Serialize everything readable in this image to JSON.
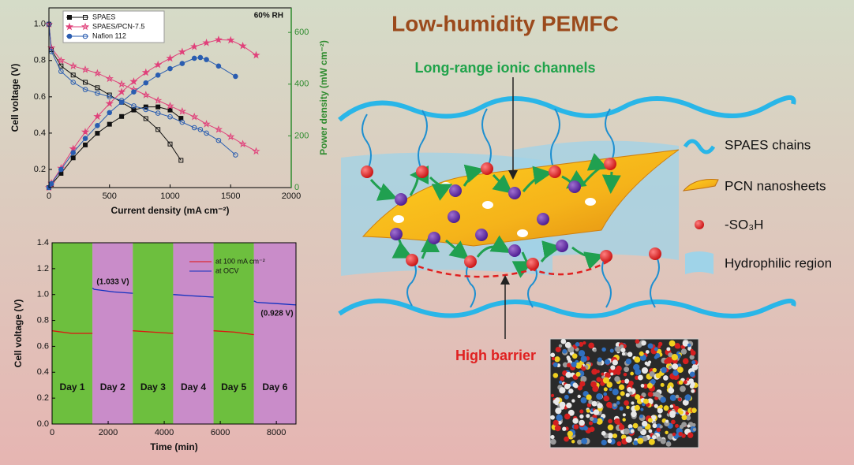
{
  "chart_data": [
    {
      "type": "line",
      "xlabel": "Current density (mA cm⁻²)",
      "ylabel": "Cell voltage (V)",
      "y2label": "Power density (mW cm⁻²)",
      "annotation": "60% RH",
      "legend": "upper left",
      "xlim": [
        0,
        2000
      ],
      "xticks": [
        0,
        500,
        1000,
        1500,
        2000
      ],
      "ylim": [
        0.1,
        1.09
      ],
      "yticks": [
        0.2,
        0.4,
        0.6,
        0.8,
        {
          "value": 1.0,
          "label": "1.0"
        }
      ],
      "y2lim": [
        0,
        695
      ],
      "y2ticks": [
        0,
        200,
        400,
        600
      ],
      "series": [
        {
          "name": "SPAES",
          "color": "#111111",
          "marker": "square",
          "x": [
            0,
            20,
            100,
            200,
            300,
            400,
            500,
            600,
            700,
            800,
            900,
            1000,
            1090
          ],
          "values": [
            1.0,
            0.86,
            0.77,
            0.72,
            0.68,
            0.65,
            0.61,
            0.57,
            0.53,
            0.48,
            0.42,
            0.34,
            0.25
          ],
          "power": [
            0,
            12,
            55,
            115,
            165,
            210,
            245,
            275,
            300,
            312,
            312,
            300,
            268
          ]
        },
        {
          "name": "SPAES/PCN-7.5",
          "color": "#e0407a",
          "marker": "star",
          "x": [
            0,
            20,
            100,
            200,
            300,
            400,
            500,
            600,
            700,
            800,
            900,
            1000,
            1100,
            1200,
            1300,
            1400,
            1500,
            1600,
            1710
          ],
          "values": [
            1.0,
            0.87,
            0.8,
            0.77,
            0.75,
            0.73,
            0.7,
            0.67,
            0.64,
            0.61,
            0.58,
            0.55,
            0.52,
            0.49,
            0.45,
            0.42,
            0.38,
            0.34,
            0.3
          ],
          "power": [
            0,
            17,
            75,
            150,
            215,
            275,
            325,
            370,
            410,
            445,
            475,
            500,
            525,
            545,
            560,
            572,
            570,
            548,
            512
          ]
        },
        {
          "name": "Nafion 112",
          "color": "#2a5db0",
          "marker": "circle",
          "x": [
            0,
            20,
            100,
            200,
            300,
            400,
            500,
            600,
            700,
            800,
            900,
            1000,
            1100,
            1200,
            1250,
            1300,
            1400,
            1540
          ],
          "values": [
            1.0,
            0.85,
            0.74,
            0.68,
            0.64,
            0.62,
            0.6,
            0.58,
            0.55,
            0.53,
            0.51,
            0.49,
            0.46,
            0.43,
            0.42,
            0.4,
            0.36,
            0.28
          ],
          "power": [
            0,
            15,
            70,
            135,
            190,
            240,
            290,
            330,
            370,
            405,
            435,
            460,
            480,
            500,
            503,
            495,
            470,
            430
          ]
        }
      ]
    },
    {
      "type": "line",
      "xlabel": "Time (min)",
      "ylabel": "Cell voltage (V)",
      "legend": "upper right",
      "annotations": [
        "(1.033 V)",
        "(0.928 V)"
      ],
      "xlim": [
        0,
        8700
      ],
      "xticks": [
        0,
        2000,
        4000,
        6000,
        8000
      ],
      "ylim": [
        0,
        1.4
      ],
      "yticks": [
        {
          "value": 0.0,
          "label": "0.0"
        },
        0.2,
        0.4,
        0.6,
        0.8,
        {
          "value": 1.0,
          "label": "1.0"
        },
        1.2,
        1.4
      ],
      "bands": [
        {
          "label": "Day 1",
          "start": 0,
          "end": 1440,
          "color": "#6dbf3e"
        },
        {
          "label": "Day 2",
          "start": 1440,
          "end": 2880,
          "color": "#c98cc9"
        },
        {
          "label": "Day 3",
          "start": 2880,
          "end": 4320,
          "color": "#6dbf3e"
        },
        {
          "label": "Day 4",
          "start": 4320,
          "end": 5760,
          "color": "#c98cc9"
        },
        {
          "label": "Day 5",
          "start": 5760,
          "end": 7200,
          "color": "#6dbf3e"
        },
        {
          "label": "Day 6",
          "start": 7200,
          "end": 8700,
          "color": "#c98cc9"
        }
      ],
      "series": [
        {
          "name": "at 100 mA cm⁻²",
          "color": "#e01010",
          "x": [
            0,
            700,
            1440,
            2160,
            2880,
            3600,
            4320,
            5040,
            5760,
            6500,
            7200
          ],
          "values": [
            0.72,
            0.7,
            0.7,
            null,
            0.72,
            0.71,
            0.7,
            null,
            0.72,
            0.71,
            0.69
          ]
        },
        {
          "name": "at OCV",
          "color": "#1030c0",
          "x": [
            1440,
            1500,
            2200,
            2880,
            3600,
            4320,
            5000,
            5760,
            6480,
            7200,
            7300,
            8000,
            8700
          ],
          "values": [
            1.05,
            1.04,
            1.02,
            1.01,
            null,
            1.0,
            0.99,
            0.98,
            null,
            0.95,
            0.94,
            0.93,
            0.92
          ]
        }
      ]
    }
  ],
  "diagram": {
    "title": "Low-humidity PEMFC",
    "channel_label": "Long-range ionic channels",
    "barrier_label": "High barrier",
    "legend": [
      "SPAES chains",
      "PCN nanosheets",
      "-SO₃H",
      "Hydrophilic region"
    ]
  }
}
